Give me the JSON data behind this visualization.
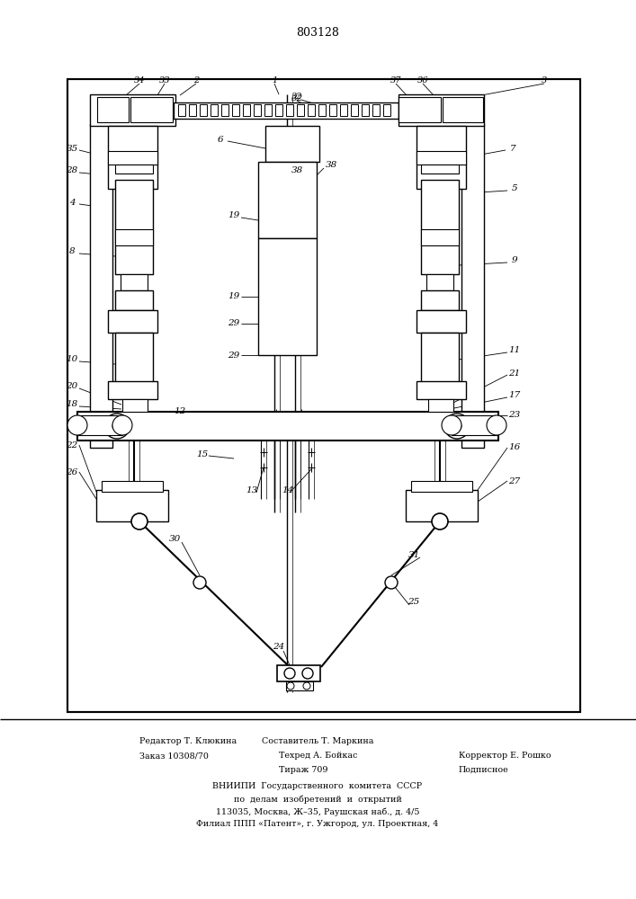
{
  "title": "803128",
  "bg_color": "#ffffff",
  "line_color": "#000000",
  "footer": {
    "line1_left": "Редактор Т. Клюкина",
    "line1_center": "Составитель Т. Маркина",
    "line2_left": "Заказ 10308/70",
    "line2_center": "Техред А. Бойкас",
    "line2_right": "Корректор Е. Рошко",
    "line3_center": "Тираж 709",
    "line3_right": "Подписное",
    "line4": "ВНИИПИ  Государственного  комитета  СССР",
    "line5": "по  делам  изобретений  и  открытий",
    "line6": "113035, Москва, Ж–35, Раушская наб., д. 4/5",
    "line7": "Филиал ППП «Патент», г. Ужгород, ул. Проектная, 4"
  }
}
